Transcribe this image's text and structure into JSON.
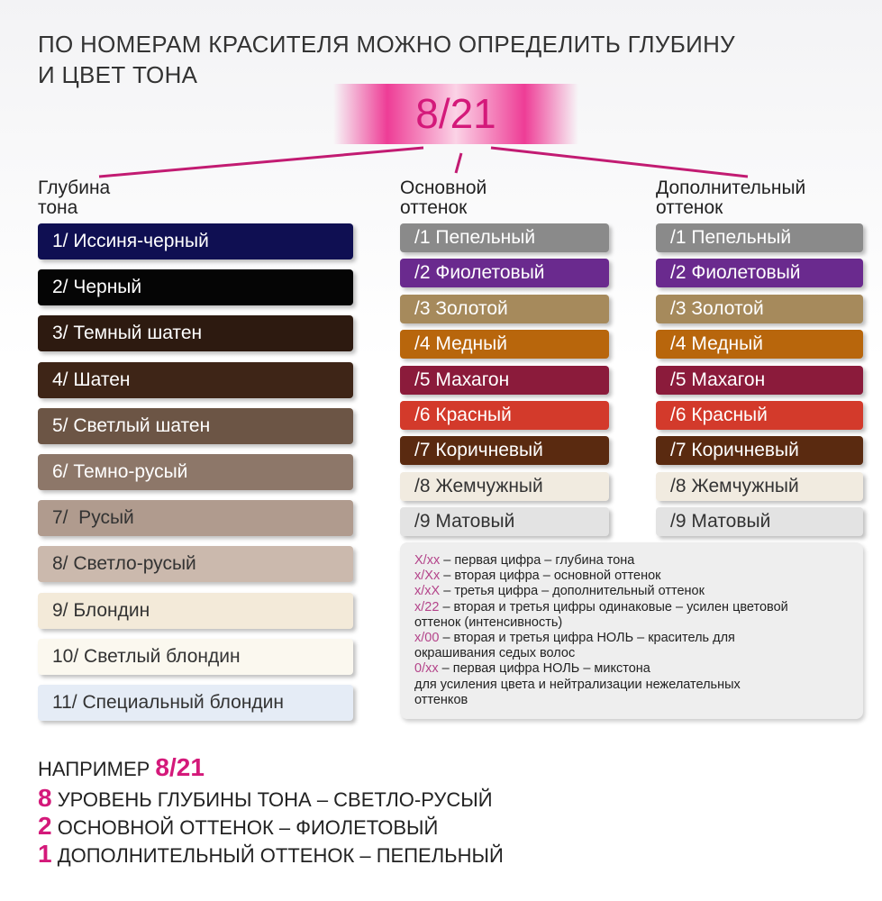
{
  "header": {
    "title": [
      "ПО НОМЕРАМ КРАСИТЕЛЯ МОЖНО ОПРЕДЕЛИТЬ ГЛУБИНУ",
      "И ЦВЕТ ТОНА"
    ],
    "code": "8/21"
  },
  "columns": [
    {
      "title": [
        "Глубина",
        "тона"
      ],
      "items": [
        {
          "label": "1/ Иссиня-черный",
          "color": "#0f0f52"
        },
        {
          "label": "2/ Черный",
          "color": "#050505"
        },
        {
          "label": "3/ Темный шатен",
          "color": "#2d1a10"
        },
        {
          "label": "4/ Шатен",
          "color": "#3e2517"
        },
        {
          "label": "5/ Светлый шатен",
          "color": "#6c5545"
        },
        {
          "label": "6/ Темно-русый",
          "color": "#8d7769"
        },
        {
          "label": "7/  Русый",
          "color": "#b09b8e"
        },
        {
          "label": "8/ Светло-русый",
          "color": "#cbb9ad"
        },
        {
          "label": "9/ Блондин",
          "color": "#f3ead9"
        },
        {
          "label": "10/ Светлый блондин",
          "color": "#fbf8ef"
        },
        {
          "label": "11/ Специальный блондин",
          "color": "#e5ecf6"
        }
      ]
    },
    {
      "title": [
        "Основной",
        "оттенок"
      ],
      "items": [
        {
          "label": "/1 Пепельный",
          "color": "#8a8a8a"
        },
        {
          "label": "/2 Фиолетовый",
          "color": "#6a2a8e"
        },
        {
          "label": "/3 Золотой",
          "color": "#a68a5c"
        },
        {
          "label": "/4 Медный",
          "color": "#b8660c"
        },
        {
          "label": "/5 Махагон",
          "color": "#8b1b3b"
        },
        {
          "label": "/6 Красный",
          "color": "#d33a2b"
        },
        {
          "label": "/7 Коричневый",
          "color": "#5a2a10"
        },
        {
          "label": "/8 Жемчужный",
          "color": "#f1ebe0"
        },
        {
          "label": "/9 Матовый",
          "color": "#e3e3e3"
        }
      ]
    },
    {
      "title": [
        "Дополнительный",
        "оттенок"
      ],
      "items": [
        {
          "label": "/1 Пепельный",
          "color": "#8a8a8a"
        },
        {
          "label": "/2 Фиолетовый",
          "color": "#6a2a8e"
        },
        {
          "label": "/3 Золотой",
          "color": "#a68a5c"
        },
        {
          "label": "/4 Медный",
          "color": "#b8660c"
        },
        {
          "label": "/5 Махагон",
          "color": "#8b1b3b"
        },
        {
          "label": "/6 Красный",
          "color": "#d33a2b"
        },
        {
          "label": "/7 Коричневый",
          "color": "#5a2a10"
        },
        {
          "label": "/8 Жемчужный",
          "color": "#f1ebe0"
        },
        {
          "label": "/9 Матовый",
          "color": "#e3e3e3"
        }
      ]
    }
  ],
  "notes": [
    {
      "code": "X/xx",
      "lines": [
        " – первая цифра – глубина тона"
      ]
    },
    {
      "code": "x/Xx",
      "lines": [
        " – вторая цифра – основной оттенок"
      ]
    },
    {
      "code": "x/xX",
      "lines": [
        " – третья цифра – дополнительный оттенок"
      ]
    },
    {
      "code": "x/22",
      "lines": [
        " – вторая и третья цифры одинаковые – усилен цветовой",
        "оттенок (интенсивность)"
      ]
    },
    {
      "code": "x/00",
      "lines": [
        " – вторая и третья цифра НОЛЬ – краситель для",
        "окрашивания седых волос"
      ]
    },
    {
      "code": "0/xx",
      "lines": [
        " – первая цифра НОЛЬ – микстона",
        "для усиления цвета и нейтрализации нежелательных",
        "оттенков"
      ]
    }
  ],
  "example": {
    "prefix": "НАПРИМЕР",
    "code": "8/21",
    "lines": [
      {
        "num": "8",
        "text": "УРОВЕНЬ ГЛУБИНЫ ТОНА – СВЕТЛО-РУСЫЙ"
      },
      {
        "num": "2",
        "text": "ОСНОВНОЙ ОТТЕНОК – ФИОЛЕТОВЫЙ"
      },
      {
        "num": "1",
        "text": "ДОПОЛНИТЕЛЬНЫЙ ОТТЕНОК – ПЕПЕЛЬНЫЙ"
      }
    ]
  }
}
